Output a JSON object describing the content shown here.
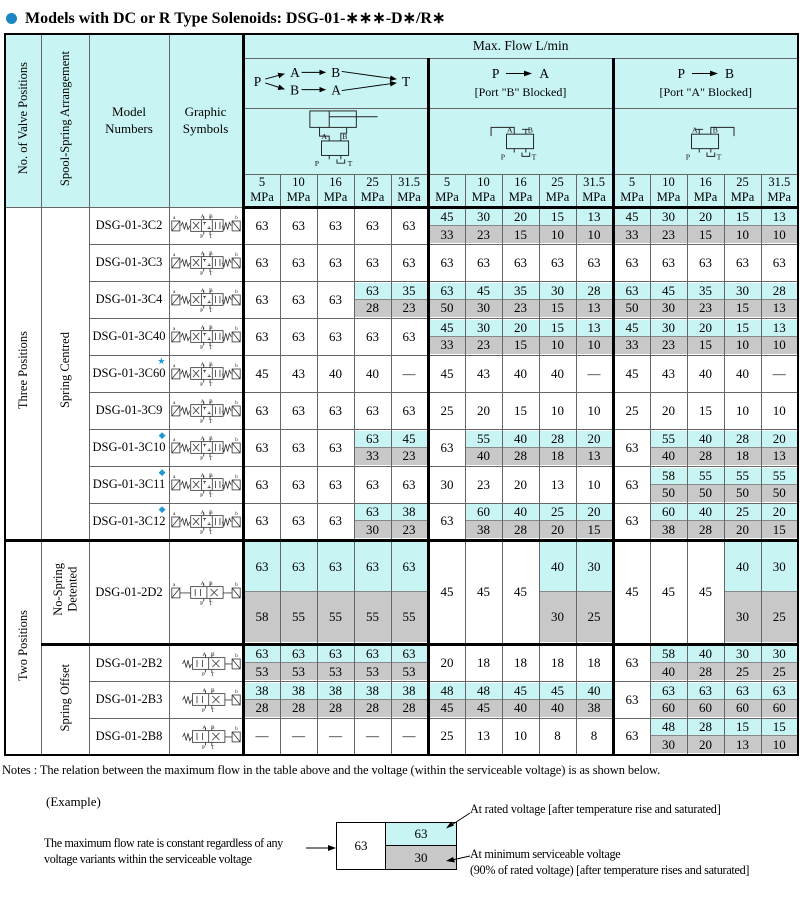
{
  "colors": {
    "accent_cyan": "#c8f4f4",
    "shaded_gray": "#c8c8c8",
    "marker_blue": "#2196d4",
    "bullet_blue": "#1b86c4"
  },
  "title": {
    "text": "Models with DC or R Type Solenoids: DSG-01-∗∗∗-D∗/R∗"
  },
  "markers": {
    "star": {
      "glyph": "★",
      "color": "#2196d4"
    },
    "diamond": {
      "glyph": "◆",
      "color": "#2196d4"
    }
  },
  "valve_labels": {
    "A": "A",
    "B": "B",
    "P": "P",
    "T": "T",
    "a": "a",
    "b": "b"
  },
  "table": {
    "corner_headers": [
      "No. of Valve Positions",
      "Spool-Spring Arrangement",
      "Model Numbers",
      "Graphic Symbols"
    ],
    "max_flow_header": "Max. Flow  L/min",
    "groups": [
      {
        "name": "all-paths",
        "flow_labels": {
          "p": "P",
          "a": "A",
          "b": "B",
          "t": "T"
        }
      },
      {
        "from": "P",
        "to": "A",
        "subtitle": "[Port \"B\" Blocked]"
      },
      {
        "from": "P",
        "to": "B",
        "subtitle": "[Port \"A\" Blocked]"
      }
    ],
    "pressures": [
      "5",
      "10",
      "16",
      "25",
      "31.5"
    ],
    "pressure_unit": "MPa",
    "sections": [
      {
        "position_label": "Three Positions",
        "subsections": [
          {
            "arrangement_label": "Spring Centred",
            "rows": [
              {
                "model": "DSG-01-3C2",
                "symbol": "3pos",
                "cells": [
                  [
                    "63"
                  ],
                  [
                    "63"
                  ],
                  [
                    "63"
                  ],
                  [
                    "63"
                  ],
                  [
                    "63"
                  ],
                  [
                    "45",
                    "33"
                  ],
                  [
                    "30",
                    "23"
                  ],
                  [
                    "20",
                    "15"
                  ],
                  [
                    "15",
                    "10"
                  ],
                  [
                    "13",
                    "10"
                  ],
                  [
                    "45",
                    "33"
                  ],
                  [
                    "30",
                    "23"
                  ],
                  [
                    "20",
                    "15"
                  ],
                  [
                    "15",
                    "10"
                  ],
                  [
                    "13",
                    "10"
                  ]
                ]
              },
              {
                "model": "DSG-01-3C3",
                "symbol": "3pos",
                "cells": [
                  [
                    "63"
                  ],
                  [
                    "63"
                  ],
                  [
                    "63"
                  ],
                  [
                    "63"
                  ],
                  [
                    "63"
                  ],
                  [
                    "63"
                  ],
                  [
                    "63"
                  ],
                  [
                    "63"
                  ],
                  [
                    "63"
                  ],
                  [
                    "63"
                  ],
                  [
                    "63"
                  ],
                  [
                    "63"
                  ],
                  [
                    "63"
                  ],
                  [
                    "63"
                  ],
                  [
                    "63"
                  ]
                ]
              },
              {
                "model": "DSG-01-3C4",
                "symbol": "3pos",
                "cells": [
                  [
                    "63"
                  ],
                  [
                    "63"
                  ],
                  [
                    "63"
                  ],
                  [
                    "63",
                    "28"
                  ],
                  [
                    "35",
                    "23"
                  ],
                  [
                    "63",
                    "50"
                  ],
                  [
                    "45",
                    "30"
                  ],
                  [
                    "35",
                    "23"
                  ],
                  [
                    "30",
                    "15"
                  ],
                  [
                    "28",
                    "13"
                  ],
                  [
                    "63",
                    "50"
                  ],
                  [
                    "45",
                    "30"
                  ],
                  [
                    "35",
                    "23"
                  ],
                  [
                    "30",
                    "15"
                  ],
                  [
                    "28",
                    "13"
                  ]
                ]
              },
              {
                "model": "DSG-01-3C40",
                "symbol": "3pos",
                "cells": [
                  [
                    "63"
                  ],
                  [
                    "63"
                  ],
                  [
                    "63"
                  ],
                  [
                    "63"
                  ],
                  [
                    "63"
                  ],
                  [
                    "45",
                    "33"
                  ],
                  [
                    "30",
                    "23"
                  ],
                  [
                    "20",
                    "15"
                  ],
                  [
                    "15",
                    "10"
                  ],
                  [
                    "13",
                    "10"
                  ],
                  [
                    "45",
                    "33"
                  ],
                  [
                    "30",
                    "23"
                  ],
                  [
                    "20",
                    "15"
                  ],
                  [
                    "15",
                    "10"
                  ],
                  [
                    "13",
                    "10"
                  ]
                ]
              },
              {
                "model": "DSG-01-3C60",
                "symbol": "3pos",
                "marker": "star",
                "cells": [
                  [
                    "45"
                  ],
                  [
                    "43"
                  ],
                  [
                    "40"
                  ],
                  [
                    "40"
                  ],
                  [
                    "—"
                  ],
                  [
                    "45"
                  ],
                  [
                    "43"
                  ],
                  [
                    "40"
                  ],
                  [
                    "40"
                  ],
                  [
                    "—"
                  ],
                  [
                    "45"
                  ],
                  [
                    "43"
                  ],
                  [
                    "40"
                  ],
                  [
                    "40"
                  ],
                  [
                    "—"
                  ]
                ]
              },
              {
                "model": "DSG-01-3C9",
                "symbol": "3pos",
                "cells": [
                  [
                    "63"
                  ],
                  [
                    "63"
                  ],
                  [
                    "63"
                  ],
                  [
                    "63"
                  ],
                  [
                    "63"
                  ],
                  [
                    "25"
                  ],
                  [
                    "20"
                  ],
                  [
                    "15"
                  ],
                  [
                    "10"
                  ],
                  [
                    "10"
                  ],
                  [
                    "25"
                  ],
                  [
                    "20"
                  ],
                  [
                    "15"
                  ],
                  [
                    "10"
                  ],
                  [
                    "10"
                  ]
                ]
              },
              {
                "model": "DSG-01-3C10",
                "symbol": "3pos",
                "marker": "diamond",
                "cells": [
                  [
                    "63"
                  ],
                  [
                    "63"
                  ],
                  [
                    "63"
                  ],
                  [
                    "63",
                    "33"
                  ],
                  [
                    "45",
                    "23"
                  ],
                  [
                    "63"
                  ],
                  [
                    "55",
                    "40"
                  ],
                  [
                    "40",
                    "28"
                  ],
                  [
                    "28",
                    "18"
                  ],
                  [
                    "20",
                    "13"
                  ],
                  [
                    "63"
                  ],
                  [
                    "55",
                    "40"
                  ],
                  [
                    "40",
                    "28"
                  ],
                  [
                    "28",
                    "18"
                  ],
                  [
                    "20",
                    "13"
                  ]
                ]
              },
              {
                "model": "DSG-01-3C11",
                "symbol": "3pos",
                "marker": "diamond",
                "cells": [
                  [
                    "63"
                  ],
                  [
                    "63"
                  ],
                  [
                    "63"
                  ],
                  [
                    "63"
                  ],
                  [
                    "63"
                  ],
                  [
                    "30"
                  ],
                  [
                    "23"
                  ],
                  [
                    "20"
                  ],
                  [
                    "13"
                  ],
                  [
                    "10"
                  ],
                  [
                    "63"
                  ],
                  [
                    "58",
                    "50"
                  ],
                  [
                    "55",
                    "50"
                  ],
                  [
                    "55",
                    "50"
                  ],
                  [
                    "55",
                    "50"
                  ]
                ]
              },
              {
                "model": "DSG-01-3C12",
                "symbol": "3pos",
                "marker": "diamond",
                "cells": [
                  [
                    "63"
                  ],
                  [
                    "63"
                  ],
                  [
                    "63"
                  ],
                  [
                    "63",
                    "30"
                  ],
                  [
                    "38",
                    "23"
                  ],
                  [
                    "63"
                  ],
                  [
                    "60",
                    "38"
                  ],
                  [
                    "40",
                    "28"
                  ],
                  [
                    "25",
                    "20"
                  ],
                  [
                    "20",
                    "15"
                  ],
                  [
                    "63"
                  ],
                  [
                    "60",
                    "38"
                  ],
                  [
                    "40",
                    "28"
                  ],
                  [
                    "25",
                    "20"
                  ],
                  [
                    "20",
                    "15"
                  ]
                ]
              }
            ]
          }
        ]
      },
      {
        "position_label": "Two Positions",
        "subsections": [
          {
            "arrangement_label": "No-Spring\nDetented",
            "rows": [
              {
                "model": "DSG-01-2D2",
                "symbol": "2pos-detent",
                "height": 103,
                "cells": [
                  [
                    "63",
                    "58"
                  ],
                  [
                    "63",
                    "55"
                  ],
                  [
                    "63",
                    "55"
                  ],
                  [
                    "63",
                    "55"
                  ],
                  [
                    "63",
                    "55"
                  ],
                  [
                    "45"
                  ],
                  [
                    "45"
                  ],
                  [
                    "45"
                  ],
                  [
                    "40",
                    "30"
                  ],
                  [
                    "30",
                    "25"
                  ],
                  [
                    "45"
                  ],
                  [
                    "45"
                  ],
                  [
                    "45"
                  ],
                  [
                    "40",
                    "30"
                  ],
                  [
                    "30",
                    "25"
                  ]
                ]
              }
            ]
          },
          {
            "arrangement_label": "Spring Offset",
            "rows": [
              {
                "model": "DSG-01-2B2",
                "symbol": "2pos-spring",
                "cells": [
                  [
                    "63",
                    "53"
                  ],
                  [
                    "63",
                    "53"
                  ],
                  [
                    "63",
                    "53"
                  ],
                  [
                    "63",
                    "53"
                  ],
                  [
                    "63",
                    "53"
                  ],
                  [
                    "20"
                  ],
                  [
                    "18"
                  ],
                  [
                    "18"
                  ],
                  [
                    "18"
                  ],
                  [
                    "18"
                  ],
                  [
                    "63"
                  ],
                  [
                    "58",
                    "40"
                  ],
                  [
                    "40",
                    "28"
                  ],
                  [
                    "30",
                    "25"
                  ],
                  [
                    "30",
                    "25"
                  ]
                ]
              },
              {
                "model": "DSG-01-2B3",
                "symbol": "2pos-spring",
                "cells": [
                  [
                    "38",
                    "28"
                  ],
                  [
                    "38",
                    "28"
                  ],
                  [
                    "38",
                    "28"
                  ],
                  [
                    "38",
                    "28"
                  ],
                  [
                    "38",
                    "28"
                  ],
                  [
                    "48",
                    "45"
                  ],
                  [
                    "48",
                    "45"
                  ],
                  [
                    "45",
                    "40"
                  ],
                  [
                    "45",
                    "40"
                  ],
                  [
                    "40",
                    "38"
                  ],
                  [
                    "63"
                  ],
                  [
                    "63",
                    "60"
                  ],
                  [
                    "63",
                    "60"
                  ],
                  [
                    "63",
                    "60"
                  ],
                  [
                    "63",
                    "60"
                  ]
                ]
              },
              {
                "model": "DSG-01-2B8",
                "symbol": "2pos-spring",
                "cells": [
                  [
                    "—"
                  ],
                  [
                    "—"
                  ],
                  [
                    "—"
                  ],
                  [
                    "—"
                  ],
                  [
                    "—"
                  ],
                  [
                    "25"
                  ],
                  [
                    "13"
                  ],
                  [
                    "10"
                  ],
                  [
                    "8"
                  ],
                  [
                    "8"
                  ],
                  [
                    "63"
                  ],
                  [
                    "48",
                    "30"
                  ],
                  [
                    "28",
                    "20"
                  ],
                  [
                    "15",
                    "13"
                  ],
                  [
                    "15",
                    "10"
                  ]
                ]
              }
            ]
          }
        ]
      }
    ]
  },
  "notes": "Notes : The relation between the maximum flow in the table above and the voltage (within the serviceable voltage) is as shown below.",
  "example": {
    "label": "(Example)",
    "left_text": "The maximum flow rate is constant regardless of any voltage variants within the serviceable voltage",
    "box_value": "63",
    "rated_value": "63",
    "min_value": "30",
    "rated_note": "At rated voltage [after temperature rise and saturated]",
    "min_note_line1": "At minimum serviceable voltage",
    "min_note_line2": "(90% of rated voltage) [after temperature rises and saturated]"
  }
}
